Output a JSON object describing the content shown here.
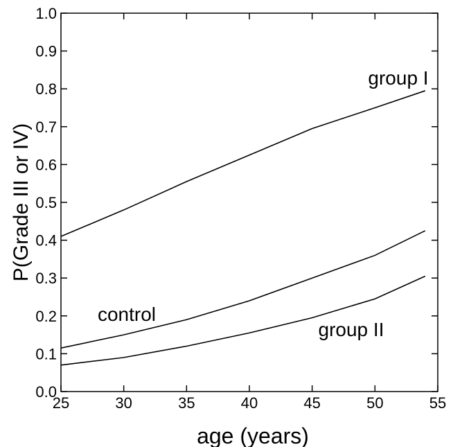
{
  "chart_data": {
    "type": "line",
    "xlabel": "age (years)",
    "ylabel": "P(Grade III or IV)",
    "x": [
      25,
      30,
      35,
      40,
      45,
      50,
      54
    ],
    "series": [
      {
        "name": "group I",
        "color": "#000000",
        "values": [
          0.41,
          0.48,
          0.555,
          0.625,
          0.695,
          0.75,
          0.795
        ]
      },
      {
        "name": "control",
        "color": "#000000",
        "values": [
          0.115,
          0.15,
          0.19,
          0.24,
          0.3,
          0.36,
          0.425
        ]
      },
      {
        "name": "group II",
        "color": "#000000",
        "values": [
          0.07,
          0.09,
          0.12,
          0.155,
          0.195,
          0.245,
          0.305
        ]
      }
    ],
    "xlim": [
      25,
      55
    ],
    "xticks": [
      25,
      30,
      35,
      40,
      45,
      50,
      55
    ],
    "ylim": [
      0,
      1
    ],
    "yticks": [
      {
        "value": 0,
        "label": "0.0"
      },
      {
        "value": 0.1,
        "label": "0.1"
      },
      {
        "value": 0.2,
        "label": "0.2"
      },
      {
        "value": 0.3,
        "label": "0.3"
      },
      {
        "value": 0.4,
        "label": "0.4"
      },
      {
        "value": 0.5,
        "label": "0.5"
      },
      {
        "value": 0.6,
        "label": "0.6"
      },
      {
        "value": 0.7,
        "label": "0.7"
      },
      {
        "value": 0.8,
        "label": "0.8"
      },
      {
        "value": 0.9,
        "label": "0.9"
      },
      {
        "value": 1,
        "label": "1.0"
      }
    ],
    "grid": false
  }
}
